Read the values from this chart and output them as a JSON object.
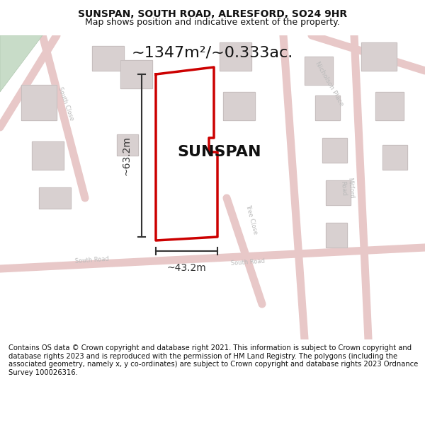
{
  "title_line1": "SUNSPAN, SOUTH ROAD, ALRESFORD, SO24 9HR",
  "title_line2": "Map shows position and indicative extent of the property.",
  "area_label": "~1347m²/~0.333ac.",
  "property_name": "SUNSPAN",
  "dim_width": "~43.2m",
  "dim_height": "~63.2m",
  "footer_text": "Contains OS data © Crown copyright and database right 2021. This information is subject to Crown copyright and database rights 2023 and is reproduced with the permission of HM Land Registry. The polygons (including the associated geometry, namely x, y co-ordinates) are subject to Crown copyright and database rights 2023 Ordnance Survey 100026316.",
  "map_bg": "#f5f0f0",
  "road_color": "#e8c8c8",
  "building_color": "#d8d0d0",
  "property_outline_color": "#cc0000",
  "dim_line_color": "#333333",
  "text_color": "#111111",
  "footer_bg": "#ffffff",
  "title_bg": "#ffffff"
}
